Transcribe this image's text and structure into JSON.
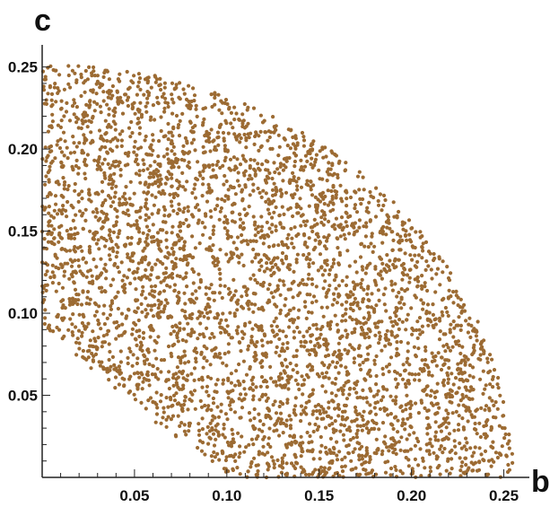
{
  "chart_data": {
    "type": "scatter",
    "title": "",
    "xlabel": "b",
    "ylabel": "c",
    "xlim": [
      0,
      0.258
    ],
    "ylim": [
      0,
      0.258
    ],
    "x_ticks": [
      "0.05",
      "0.10",
      "0.15",
      "0.20",
      "0.25"
    ],
    "y_ticks": [
      "0.05",
      "0.10",
      "0.15",
      "0.20",
      "0.25"
    ],
    "x_tick_values": [
      0.05,
      0.1,
      0.15,
      0.2,
      0.25
    ],
    "y_tick_values": [
      0.05,
      0.1,
      0.15,
      0.2,
      0.25
    ],
    "minor_step": 0.01,
    "grid": false,
    "legend": "none",
    "series": [
      {
        "color": "#9c6b33",
        "point_count": 4200,
        "region": "points filling the area 0 <= c <= 0.25 - b^2/0.25, 0 <= b <= 0.25, upper-left region boundary approx c >= 0.08 - 0.7*b",
        "sample_points": [
          [
            0.01,
            0.24
          ],
          [
            0.03,
            0.25
          ],
          [
            0.05,
            0.25
          ],
          [
            0.08,
            0.23
          ],
          [
            0.1,
            0.22
          ],
          [
            0.12,
            0.2
          ],
          [
            0.15,
            0.18
          ],
          [
            0.18,
            0.15
          ],
          [
            0.2,
            0.12
          ],
          [
            0.22,
            0.09
          ],
          [
            0.24,
            0.05
          ],
          [
            0.25,
            0.02
          ],
          [
            0.02,
            0.1
          ],
          [
            0.05,
            0.05
          ],
          [
            0.08,
            0.02
          ],
          [
            0.1,
            0.01
          ],
          [
            0.15,
            0.02
          ],
          [
            0.2,
            0.01
          ],
          [
            0.23,
            0.01
          ],
          [
            0.12,
            0.1
          ]
        ]
      }
    ]
  }
}
